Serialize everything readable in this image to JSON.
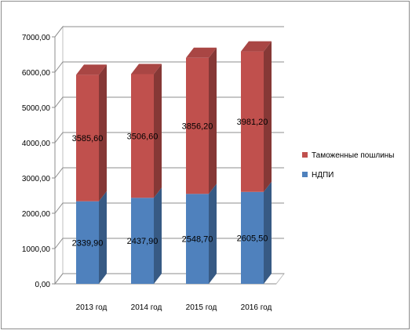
{
  "chart_data": {
    "type": "bar",
    "stacked": true,
    "three_d": true,
    "categories": [
      "2013 год",
      "2014 год",
      "2015 год",
      "2016 год"
    ],
    "series": [
      {
        "name": "НДПИ",
        "values": [
          2339.9,
          2437.9,
          2548.7,
          2605.5
        ],
        "labels": [
          "2339,90",
          "2437,90",
          "2548,70",
          "2605,50"
        ],
        "color": "#4f81bd"
      },
      {
        "name": "Таможенные пошлины",
        "values": [
          3585.6,
          3506.6,
          3856.2,
          3981.2
        ],
        "labels": [
          "3585,60",
          "3506,60",
          "3856,20",
          "3981,20"
        ],
        "color": "#c0504d"
      }
    ],
    "ylim": [
      0,
      7000
    ],
    "y_ticks": [
      "0,00",
      "1000,00",
      "2000,00",
      "3000,00",
      "4000,00",
      "5000,00",
      "6000,00",
      "7000,00"
    ],
    "grid": true,
    "legend_position": "right"
  }
}
